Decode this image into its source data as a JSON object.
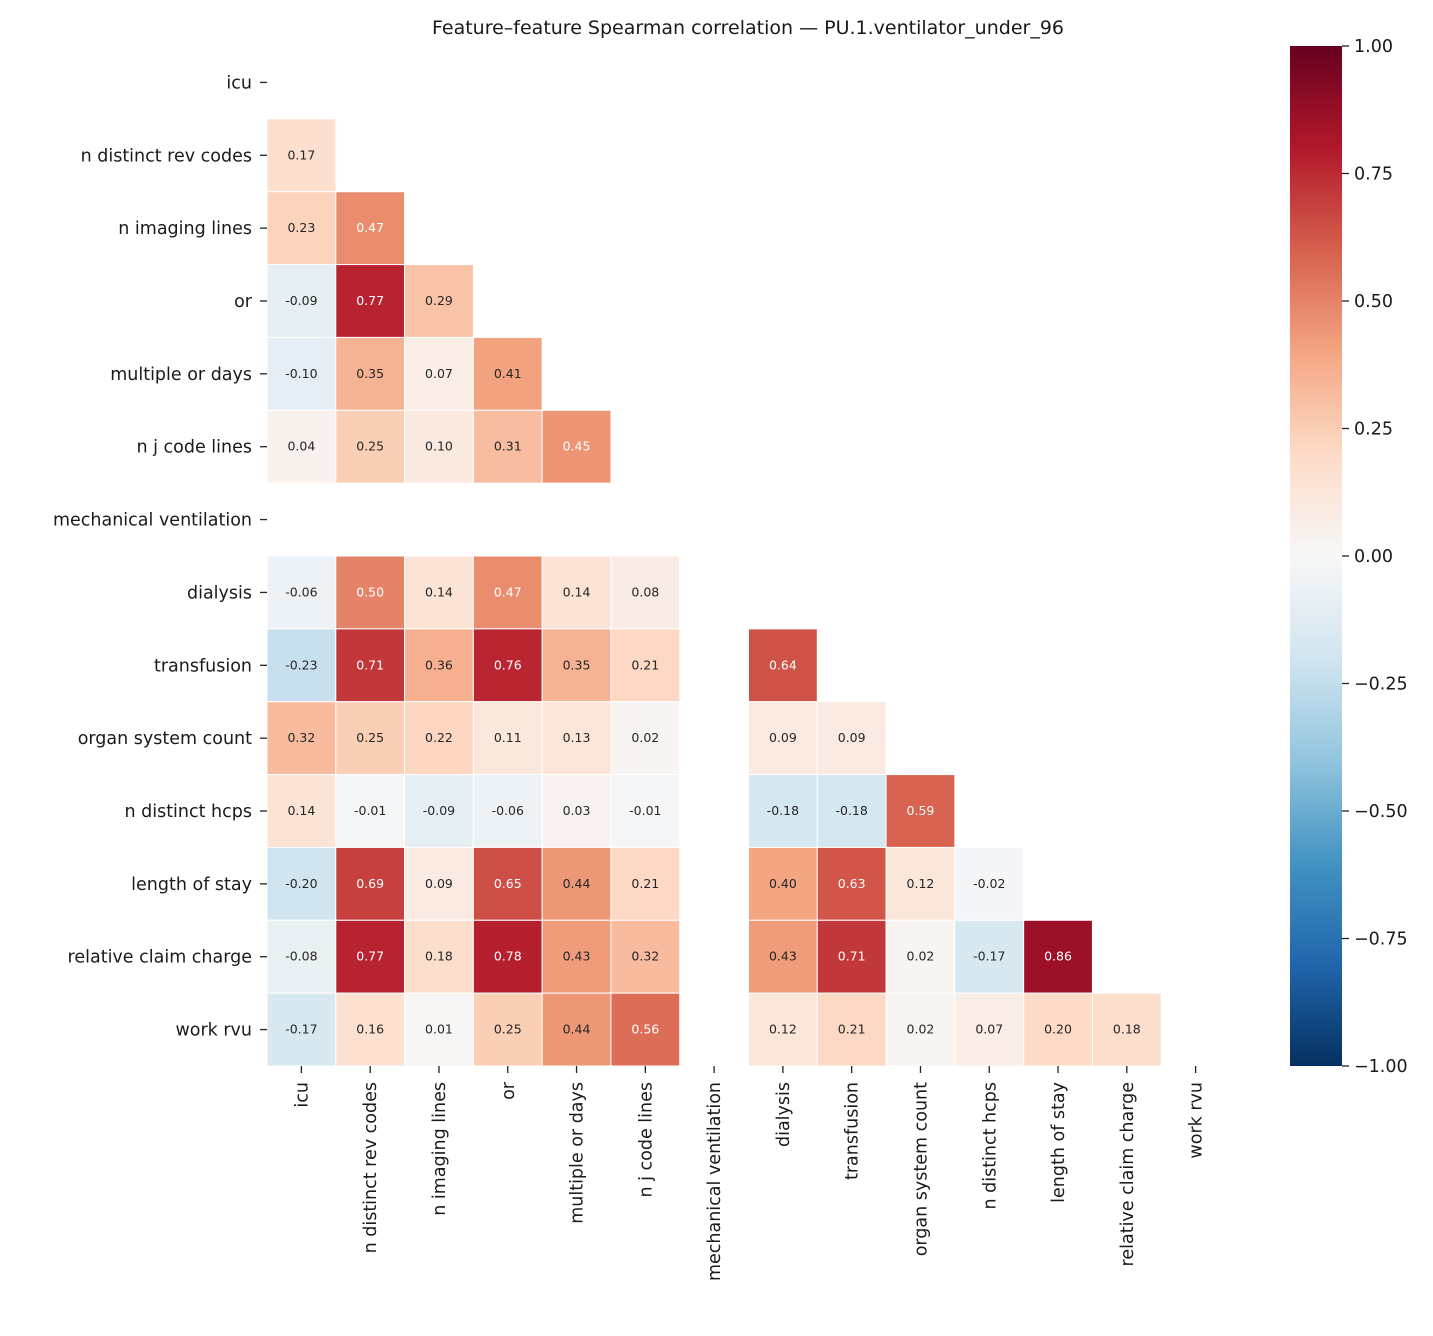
{
  "chart_data": {
    "type": "heatmap",
    "title": "Feature–feature Spearman correlation — PU.1.ventilator_under_96",
    "labels": [
      "icu",
      "n distinct rev codes",
      "n imaging lines",
      "or",
      "multiple or days",
      "n j code lines",
      "mechanical ventilation",
      "dialysis",
      "transfusion",
      "organ system count",
      "n distinct hcps",
      "length of stay",
      "relative claim charge",
      "work rvu"
    ],
    "mask": "upper triangle and diagonal hidden",
    "lower_triangle": [
      [],
      [
        0.17
      ],
      [
        0.23,
        0.47
      ],
      [
        -0.09,
        0.77,
        0.29
      ],
      [
        -0.1,
        0.35,
        0.07,
        0.41
      ],
      [
        0.04,
        0.25,
        0.1,
        0.31,
        0.45
      ],
      [
        null,
        null,
        null,
        null,
        null,
        null
      ],
      [
        -0.06,
        0.5,
        0.14,
        0.47,
        0.14,
        0.08,
        null
      ],
      [
        -0.23,
        0.71,
        0.36,
        0.76,
        0.35,
        0.21,
        null,
        0.64
      ],
      [
        0.32,
        0.25,
        0.22,
        0.11,
        0.13,
        0.02,
        null,
        0.09,
        0.09
      ],
      [
        0.14,
        -0.01,
        -0.09,
        -0.06,
        0.03,
        -0.01,
        null,
        -0.18,
        -0.18,
        0.59
      ],
      [
        -0.2,
        0.69,
        0.09,
        0.65,
        0.44,
        0.21,
        null,
        0.4,
        0.63,
        0.12,
        -0.02
      ],
      [
        -0.08,
        0.77,
        0.18,
        0.78,
        0.43,
        0.32,
        null,
        0.43,
        0.71,
        0.02,
        -0.17,
        0.86
      ],
      [
        -0.17,
        0.16,
        0.01,
        0.25,
        0.44,
        0.56,
        null,
        0.12,
        0.21,
        0.02,
        0.07,
        0.2,
        0.18
      ]
    ],
    "colormap": "RdBu_r",
    "colormap_stops": [
      "#053061",
      "#2166ac",
      "#4393c3",
      "#92c5de",
      "#d1e5f0",
      "#f7f7f7",
      "#fddbc7",
      "#f4a582",
      "#d6604d",
      "#b2182b",
      "#67001f"
    ],
    "vmin": -1.0,
    "vmax": 1.0,
    "colorbar_ticks": [
      "−1.00",
      "−0.75",
      "−0.50",
      "−0.25",
      "0.00",
      "0.25",
      "0.50",
      "0.75",
      "1.00"
    ],
    "colorbar_tick_values": [
      -1,
      -0.75,
      -0.5,
      -0.25,
      0,
      0.25,
      0.5,
      0.75,
      1
    ]
  }
}
